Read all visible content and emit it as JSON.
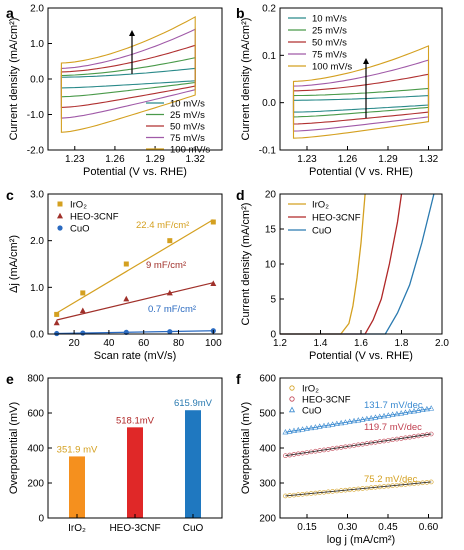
{
  "chart_data": [
    {
      "panel": "a",
      "type": "line",
      "xlabel": "Potential (V vs. RHE)",
      "ylabel": "Current density (mA/cm²)",
      "xlim": [
        1.21,
        1.34
      ],
      "ylim": [
        -2.0,
        2.0
      ],
      "xticks": [
        "1.23",
        "1.26",
        "1.29",
        "1.32"
      ],
      "yticks": [
        "-2.0",
        "-1.0",
        "0.0",
        "1.0",
        "2.0"
      ],
      "legend_position": "lower-right",
      "arrow": "up",
      "x_range": [
        1.22,
        1.32
      ],
      "series": [
        {
          "name": "10 mV/s",
          "color": "#2a8a8a",
          "top": [
            0.05,
            0.3
          ],
          "bottom": [
            -0.25,
            -0.05
          ]
        },
        {
          "name": "25 mV/s",
          "color": "#4a9a4a",
          "top": [
            0.1,
            0.6
          ],
          "bottom": [
            -0.5,
            -0.1
          ]
        },
        {
          "name": "50 mV/s",
          "color": "#b03030",
          "top": [
            0.2,
            0.95
          ],
          "bottom": [
            -0.8,
            -0.2
          ]
        },
        {
          "name": "75 mV/s",
          "color": "#a05aa8",
          "top": [
            0.3,
            1.4
          ],
          "bottom": [
            -1.1,
            -0.3
          ]
        },
        {
          "name": "100 mV/s",
          "color": "#d4a020",
          "top": [
            0.45,
            1.75
          ],
          "bottom": [
            -1.5,
            -0.45
          ]
        }
      ]
    },
    {
      "panel": "b",
      "type": "line",
      "xlabel": "Potential (V vs. RHE)",
      "ylabel": "Current density (mA/cm²)",
      "xlim": [
        1.21,
        1.33
      ],
      "ylim": [
        -0.1,
        0.2
      ],
      "xticks": [
        "1.23",
        "1.26",
        "1.29",
        "1.32"
      ],
      "yticks": [
        "-0.1",
        "0.0",
        "0.1",
        "0.2"
      ],
      "legend_position": "top-left",
      "arrow": "up",
      "x_range": [
        1.22,
        1.32
      ],
      "series": [
        {
          "name": "10 mV/s",
          "color": "#2a8a8a",
          "top": [
            0.005,
            0.015
          ],
          "bottom": [
            -0.02,
            -0.005
          ]
        },
        {
          "name": "25 mV/s",
          "color": "#4a9a4a",
          "top": [
            0.015,
            0.03
          ],
          "bottom": [
            -0.03,
            -0.01
          ]
        },
        {
          "name": "50 mV/s",
          "color": "#b03030",
          "top": [
            0.025,
            0.06
          ],
          "bottom": [
            -0.045,
            -0.02
          ]
        },
        {
          "name": "75 mV/s",
          "color": "#a05aa8",
          "top": [
            0.035,
            0.09
          ],
          "bottom": [
            -0.06,
            -0.03
          ]
        },
        {
          "name": "100 mV/s",
          "color": "#d4a020",
          "top": [
            0.045,
            0.12
          ],
          "bottom": [
            -0.075,
            -0.04
          ]
        }
      ]
    },
    {
      "panel": "c",
      "type": "scatter",
      "xlabel": "Scan rate (mV/s)",
      "ylabel": "Δj (mA/cm²)",
      "xlim": [
        5,
        105
      ],
      "ylim": [
        0.0,
        3.0
      ],
      "xticks": [
        "20",
        "40",
        "60",
        "80",
        "100"
      ],
      "yticks": [
        "0.0",
        "1.0",
        "2.0",
        "3.0"
      ],
      "legend_position": "top-left",
      "x": [
        10,
        25,
        50,
        75,
        100
      ],
      "series": [
        {
          "name": "IrO₂",
          "color": "#d4a020",
          "marker": "square",
          "values": [
            0.42,
            0.88,
            1.5,
            2.0,
            2.4
          ],
          "fit": [
            0.45,
            2.45
          ],
          "label": "22.4 mF/cm²"
        },
        {
          "name": "HEO-3CNF",
          "color": "#a0302a",
          "marker": "triangle",
          "values": [
            0.24,
            0.5,
            0.75,
            0.88,
            1.08
          ],
          "fit": [
            0.3,
            1.1
          ],
          "label": "9 mF/cm²"
        },
        {
          "name": "CuO",
          "color": "#2a6ac0",
          "marker": "circle",
          "values": [
            0.01,
            0.02,
            0.035,
            0.05,
            0.07
          ],
          "fit": [
            0.01,
            0.07
          ],
          "label": "0.7 mF/cm²"
        }
      ]
    },
    {
      "panel": "d",
      "type": "line",
      "xlabel": "Potential (V vs. RHE)",
      "ylabel": "Current density (mA/cm²)",
      "xlim": [
        1.2,
        2.0
      ],
      "ylim": [
        0,
        20
      ],
      "xticks": [
        "1.2",
        "1.4",
        "1.6",
        "1.8",
        "2.0"
      ],
      "yticks": [
        "0",
        "5",
        "10",
        "15",
        "20"
      ],
      "legend_position": "top-left",
      "series": [
        {
          "name": "IrO₂",
          "color": "#d4a020",
          "x": [
            1.2,
            1.5,
            1.54,
            1.56,
            1.58,
            1.6,
            1.62
          ],
          "y": [
            0,
            0,
            1.5,
            4,
            8,
            13,
            20
          ]
        },
        {
          "name": "HEO-3CNF",
          "color": "#b02828",
          "x": [
            1.2,
            1.62,
            1.66,
            1.7,
            1.74,
            1.78,
            1.8
          ],
          "y": [
            0,
            0,
            2,
            5,
            10,
            16,
            20
          ]
        },
        {
          "name": "CuO",
          "color": "#2a7ab0",
          "x": [
            1.2,
            1.72,
            1.78,
            1.84,
            1.9,
            1.96
          ],
          "y": [
            0,
            0,
            3,
            7,
            13,
            20
          ]
        }
      ]
    },
    {
      "panel": "e",
      "type": "bar",
      "xlabel": "",
      "ylabel": "Overpotential (mV)",
      "ylim": [
        0,
        800
      ],
      "yticks": [
        "0",
        "200",
        "400",
        "600",
        "800"
      ],
      "categories": [
        "IrO₂",
        "HEO-3CNF",
        "CuO"
      ],
      "values": [
        351.9,
        518.1,
        615.9
      ],
      "labels": [
        "351.9 mV",
        "518.1mV",
        "615.9mV"
      ],
      "colors": [
        "#f5901e",
        "#e02828",
        "#1f78c0"
      ],
      "label_colors": [
        "#d4a020",
        "#b02828",
        "#2a7ab0"
      ]
    },
    {
      "panel": "f",
      "type": "scatter",
      "xlabel": "log j (mA/cm²)",
      "ylabel": "Overpotential (mV)",
      "xlim": [
        0.05,
        0.65
      ],
      "ylim": [
        200,
        600
      ],
      "xticks": [
        "0.15",
        "0.30",
        "0.45",
        "0.60"
      ],
      "yticks": [
        "200",
        "300",
        "400",
        "500",
        "600"
      ],
      "legend_position": "top-left",
      "series": [
        {
          "name": "IrO₂",
          "color": "#d4a020",
          "marker": "circle",
          "x_range": [
            0.07,
            0.61
          ],
          "y_range": [
            263,
            303
          ],
          "label": "75.2 mV/dec"
        },
        {
          "name": "HEO-3CNF",
          "color": "#c04050",
          "marker": "circle",
          "x_range": [
            0.07,
            0.61
          ],
          "y_range": [
            378,
            440
          ],
          "label": "119.7 mV/dec"
        },
        {
          "name": "CuO",
          "color": "#3a8ad0",
          "marker": "triangle",
          "x_range": [
            0.07,
            0.61
          ],
          "y_range": [
            445,
            513
          ],
          "label": "131.7 mV/dec"
        }
      ]
    }
  ]
}
